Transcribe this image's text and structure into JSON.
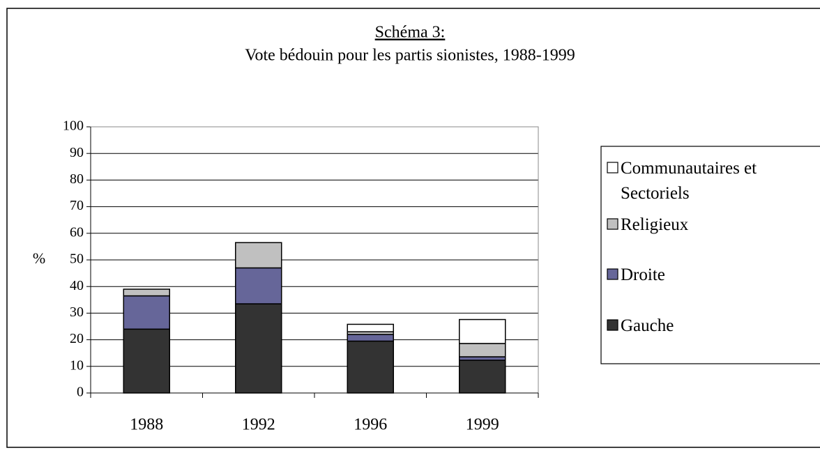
{
  "chart_data": {
    "type": "stacked_bar",
    "title": "Schéma 3:",
    "subtitle": "Vote bédouin pour les partis sionistes, 1988-1999",
    "y_label": "%",
    "categories": [
      "1988",
      "1992",
      "1996",
      "1999"
    ],
    "series": [
      {
        "name": "Gauche",
        "color": "#333333",
        "values": [
          24,
          33.5,
          19.5,
          12.3
        ]
      },
      {
        "name": "Droite",
        "color": "#666699",
        "values": [
          12.5,
          13.5,
          2.5,
          1.3
        ]
      },
      {
        "name": "Religieux",
        "color": "#c0c0c0",
        "values": [
          2.5,
          9.5,
          1,
          5
        ]
      },
      {
        "name": "Communautaires et Sectoriels",
        "color": "#ffffff",
        "values": [
          0,
          0,
          2.8,
          9
        ]
      }
    ],
    "ylim": [
      0,
      100
    ],
    "yticks": [
      0,
      10,
      20,
      30,
      40,
      50,
      60,
      70,
      80,
      90,
      100
    ],
    "grid": true,
    "legend": "right"
  }
}
